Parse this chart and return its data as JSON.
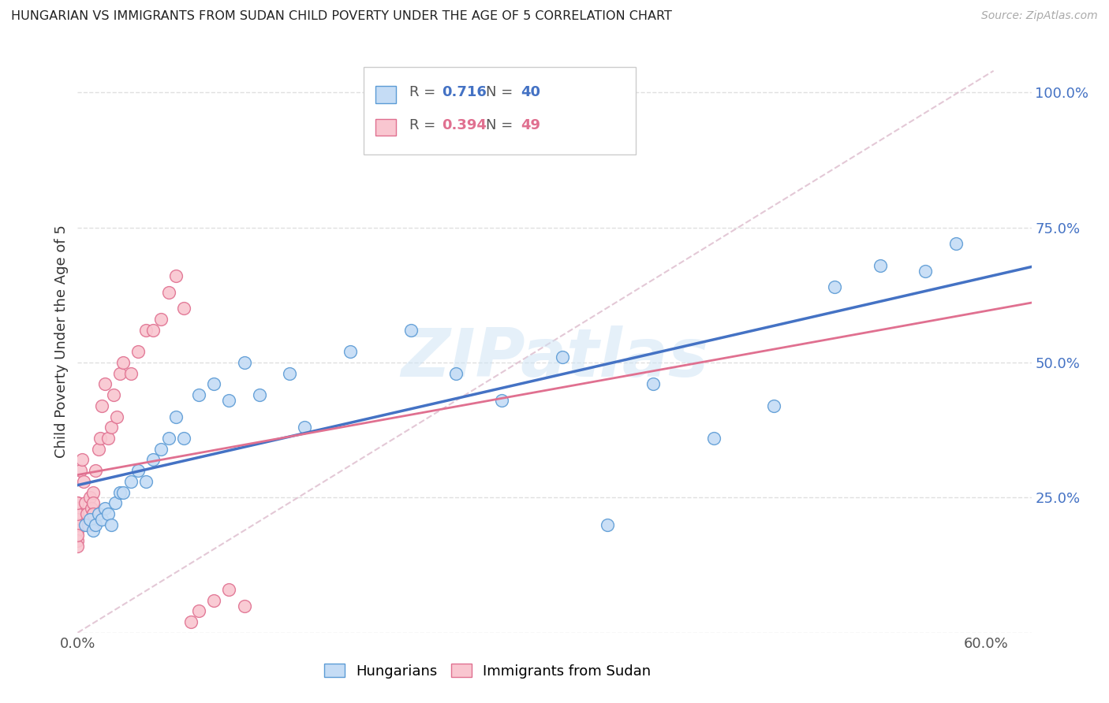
{
  "title": "HUNGARIAN VS IMMIGRANTS FROM SUDAN CHILD POVERTY UNDER THE AGE OF 5 CORRELATION CHART",
  "source": "Source: ZipAtlas.com",
  "ylabel": "Child Poverty Under the Age of 5",
  "xlim": [
    0.0,
    0.63
  ],
  "ylim": [
    0.0,
    1.08
  ],
  "x_ticks": [
    0.0,
    0.1,
    0.2,
    0.3,
    0.4,
    0.5,
    0.6
  ],
  "x_tick_labels": [
    "0.0%",
    "",
    "",
    "",
    "",
    "",
    "60.0%"
  ],
  "y_ticks": [
    0.0,
    0.25,
    0.5,
    0.75,
    1.0
  ],
  "y_tick_labels": [
    "",
    "25.0%",
    "50.0%",
    "75.0%",
    "100.0%"
  ],
  "legend_blue_r": "0.716",
  "legend_blue_n": "40",
  "legend_pink_r": "0.394",
  "legend_pink_n": "49",
  "legend_label_blue": "Hungarians",
  "legend_label_pink": "Immigrants from Sudan",
  "watermark": "ZIPatlas",
  "blue_fill": "#c5dcf5",
  "blue_edge": "#5b9bd5",
  "pink_fill": "#f9c6d0",
  "pink_edge": "#e07090",
  "blue_line": "#4472c4",
  "pink_line": "#e07090",
  "diag_color": "#ddbbcc",
  "background_color": "#ffffff",
  "grid_color": "#e0e0e0",
  "blue_scatter_x": [
    0.005,
    0.008,
    0.01,
    0.012,
    0.014,
    0.016,
    0.018,
    0.02,
    0.022,
    0.025,
    0.028,
    0.03,
    0.035,
    0.04,
    0.045,
    0.05,
    0.055,
    0.06,
    0.065,
    0.07,
    0.08,
    0.09,
    0.1,
    0.11,
    0.12,
    0.14,
    0.15,
    0.18,
    0.22,
    0.25,
    0.28,
    0.32,
    0.35,
    0.38,
    0.42,
    0.46,
    0.5,
    0.53,
    0.56,
    0.58
  ],
  "blue_scatter_y": [
    0.2,
    0.21,
    0.19,
    0.2,
    0.22,
    0.21,
    0.23,
    0.22,
    0.2,
    0.24,
    0.26,
    0.26,
    0.28,
    0.3,
    0.28,
    0.32,
    0.34,
    0.36,
    0.4,
    0.36,
    0.44,
    0.46,
    0.43,
    0.5,
    0.44,
    0.48,
    0.38,
    0.52,
    0.56,
    0.48,
    0.43,
    0.51,
    0.2,
    0.46,
    0.36,
    0.42,
    0.64,
    0.68,
    0.67,
    0.72
  ],
  "pink_scatter_x": [
    0.0,
    0.0,
    0.0,
    0.0,
    0.0,
    0.0,
    0.0,
    0.0,
    0.0,
    0.0,
    0.0,
    0.0,
    0.002,
    0.003,
    0.004,
    0.005,
    0.006,
    0.007,
    0.008,
    0.009,
    0.01,
    0.01,
    0.01,
    0.01,
    0.01,
    0.012,
    0.014,
    0.015,
    0.016,
    0.018,
    0.02,
    0.022,
    0.024,
    0.026,
    0.028,
    0.03,
    0.035,
    0.04,
    0.045,
    0.05,
    0.055,
    0.06,
    0.065,
    0.07,
    0.075,
    0.08,
    0.09,
    0.1,
    0.11
  ],
  "pink_scatter_y": [
    0.2,
    0.22,
    0.24,
    0.23,
    0.21,
    0.19,
    0.17,
    0.2,
    0.16,
    0.18,
    0.22,
    0.24,
    0.3,
    0.32,
    0.28,
    0.24,
    0.22,
    0.2,
    0.25,
    0.23,
    0.26,
    0.22,
    0.24,
    0.2,
    0.22,
    0.3,
    0.34,
    0.36,
    0.42,
    0.46,
    0.36,
    0.38,
    0.44,
    0.4,
    0.48,
    0.5,
    0.48,
    0.52,
    0.56,
    0.56,
    0.58,
    0.63,
    0.66,
    0.6,
    0.02,
    0.04,
    0.06,
    0.08,
    0.05
  ]
}
